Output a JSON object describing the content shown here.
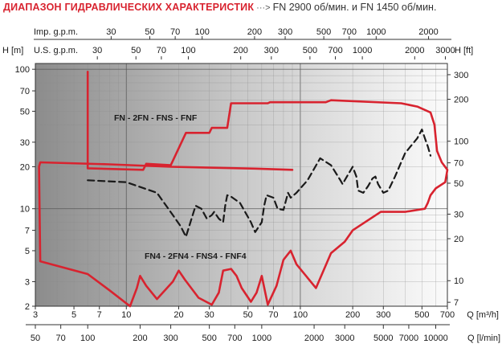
{
  "header": {
    "title": "ДИАПАЗОН ГИДРАВЛИЧЕСКИХ ХАРАКТЕРИСТИК",
    "arrow": "···>",
    "speeds": "FN  2900 об/мин.  и FN 1450 об/мин."
  },
  "chart_data": {
    "type": "area",
    "scale": "log-log",
    "colors": {
      "fn": "#d8232f",
      "fn4": "#1a1a1a",
      "background_gradient": [
        "#8e8e8e",
        "#fafafa"
      ]
    },
    "x_axis": {
      "label": "Q [m³/h]",
      "range": [
        3,
        700
      ],
      "ticks": [
        "3",
        "5",
        "7",
        "10",
        "20",
        "30",
        "50",
        "70",
        "100",
        "200",
        "300",
        "500",
        "700"
      ]
    },
    "x_axis_lpm": {
      "label": "Q [l/min]",
      "ticks": [
        "50",
        "70",
        "100",
        "200",
        "300",
        "500",
        "700",
        "1000",
        "2000",
        "3000",
        "5000",
        "7000",
        "10000"
      ]
    },
    "x_axis_imp": {
      "label": "Imp. g.p.m.",
      "ticks": [
        "30",
        "50",
        "70",
        "100",
        "200",
        "300",
        "500",
        "700",
        "1000",
        "2000"
      ]
    },
    "x_axis_us": {
      "label": "U.S. g.p.m.",
      "ticks": [
        "30",
        "50",
        "70",
        "100",
        "200",
        "300",
        "500",
        "700",
        "1000",
        "2000",
        "3000"
      ]
    },
    "y_axis_left": {
      "label": "H [m]",
      "range": [
        2,
        110
      ],
      "ticks": [
        "2",
        "3",
        "5",
        "7",
        "10",
        "20",
        "30",
        "50",
        "70",
        "100"
      ]
    },
    "y_axis_right": {
      "label": "H [ft]",
      "ticks": [
        "7",
        "10",
        "20",
        "30",
        "50",
        "70",
        "100",
        "200",
        "300"
      ]
    },
    "series": [
      {
        "name": "FN - 2FN - FNS - FNF",
        "style": "solid",
        "points": [
          [
            6,
            96
          ],
          [
            6,
            19.5
          ],
          [
            12.5,
            19
          ],
          [
            13,
            21
          ],
          [
            18,
            20.5
          ],
          [
            22,
            35
          ],
          [
            30,
            35
          ],
          [
            31,
            38
          ],
          [
            38,
            38
          ],
          [
            40,
            57
          ],
          [
            65,
            57
          ],
          [
            67,
            58
          ],
          [
            140,
            58
          ],
          [
            150,
            60
          ],
          [
            380,
            57
          ],
          [
            470,
            54
          ],
          [
            560,
            49
          ],
          [
            590,
            40
          ],
          [
            610,
            26
          ],
          [
            650,
            21.5
          ],
          [
            700,
            19
          ],
          [
            680,
            15.5
          ],
          [
            600,
            14
          ],
          [
            560,
            12.5
          ],
          [
            540,
            11
          ],
          [
            520,
            10
          ],
          [
            400,
            9.5
          ],
          [
            290,
            9.5
          ],
          [
            200,
            7
          ],
          [
            180,
            5.8
          ],
          [
            150,
            4.8
          ],
          [
            123,
            2.7
          ],
          [
            95,
            4
          ],
          [
            88,
            5
          ],
          [
            80,
            4.3
          ],
          [
            73,
            2.8
          ],
          [
            65,
            2.05
          ],
          [
            60,
            3.3
          ],
          [
            56,
            2.5
          ],
          [
            52,
            2.15
          ],
          [
            46,
            2.7
          ],
          [
            43,
            3.3
          ],
          [
            40,
            3.7
          ],
          [
            36,
            3.6
          ],
          [
            34,
            2.5
          ],
          [
            31,
            2.05
          ],
          [
            26,
            2.3
          ],
          [
            21.7,
            3.1
          ],
          [
            20,
            3.6
          ],
          [
            18.5,
            3
          ],
          [
            15,
            2.25
          ],
          [
            13,
            2.8
          ],
          [
            12,
            3.3
          ],
          [
            11.5,
            2.7
          ],
          [
            10.5,
            2.0
          ],
          [
            8,
            2.6
          ],
          [
            6,
            3.4
          ],
          [
            3.2,
            4.2
          ],
          [
            3.15,
            20
          ],
          [
            3.2,
            21.5
          ],
          [
            8,
            20.8
          ],
          [
            18,
            20
          ],
          [
            30,
            19.7
          ],
          [
            55,
            19.4
          ],
          [
            90,
            19
          ]
        ]
      },
      {
        "name": "FN4 - 2FN4 - FNS4 - FNF4",
        "style": "dashed",
        "points": [
          [
            6,
            16
          ],
          [
            10,
            15.5
          ],
          [
            15,
            13
          ],
          [
            18.5,
            9
          ],
          [
            20.5,
            7.5
          ],
          [
            22,
            6.3
          ],
          [
            23,
            7.5
          ],
          [
            25,
            10.5
          ],
          [
            27,
            10
          ],
          [
            29,
            8.5
          ],
          [
            31,
            9
          ],
          [
            32,
            9.5
          ],
          [
            34,
            8.5
          ],
          [
            36,
            8
          ],
          [
            37,
            10.5
          ],
          [
            38,
            12.5
          ],
          [
            40,
            12.2
          ],
          [
            45,
            11
          ],
          [
            52,
            8
          ],
          [
            55,
            6.8
          ],
          [
            60,
            8
          ],
          [
            62,
            10.5
          ],
          [
            64,
            12.5
          ],
          [
            70,
            12
          ],
          [
            74,
            10
          ],
          [
            80,
            9.8
          ],
          [
            85,
            13
          ],
          [
            88,
            12
          ],
          [
            95,
            13
          ],
          [
            110,
            16
          ],
          [
            130,
            23
          ],
          [
            150,
            20.5
          ],
          [
            170,
            16
          ],
          [
            175,
            15
          ],
          [
            180,
            16
          ],
          [
            200,
            20
          ],
          [
            210,
            17
          ],
          [
            215,
            13.5
          ],
          [
            230,
            13
          ],
          [
            245,
            14.5
          ],
          [
            260,
            16.5
          ],
          [
            270,
            17
          ],
          [
            280,
            15
          ],
          [
            300,
            13
          ],
          [
            320,
            13.5
          ],
          [
            350,
            17
          ],
          [
            400,
            25
          ],
          [
            430,
            28
          ],
          [
            470,
            32
          ],
          [
            500,
            37
          ],
          [
            520,
            32
          ],
          [
            540,
            28
          ],
          [
            560,
            24
          ]
        ]
      }
    ],
    "annotations": [
      "FN - 2FN - FNS - FNF",
      "FN4 - 2FN4 - FNS4 - FNF4"
    ]
  }
}
